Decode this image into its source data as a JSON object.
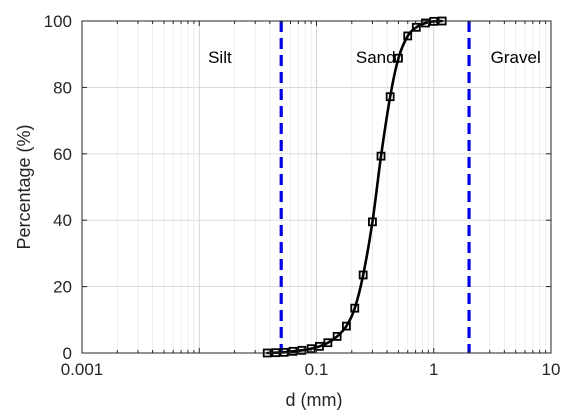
{
  "chart_data": {
    "type": "line",
    "title": "",
    "xlabel": "d (mm)",
    "ylabel": "Percentage (%)",
    "xscale": "log",
    "xlim": [
      0.001,
      10
    ],
    "ylim": [
      0,
      100
    ],
    "grid": true,
    "x_ticks": [
      0.001,
      0.1,
      1,
      10
    ],
    "x_tick_labels": [
      "0.001",
      "0.1",
      "1",
      "10"
    ],
    "y_ticks": [
      0,
      20,
      40,
      60,
      80,
      100
    ],
    "y_tick_labels": [
      "0",
      "20",
      "40",
      "60",
      "80",
      "100"
    ],
    "series": [
      {
        "name": "",
        "color": "#000000",
        "marker": "square",
        "x": [
          0.038,
          0.045,
          0.053,
          0.063,
          0.075,
          0.09,
          0.106,
          0.125,
          0.15,
          0.18,
          0.212,
          0.25,
          0.3,
          0.355,
          0.425,
          0.5,
          0.6,
          0.71,
          0.85,
          1.0,
          1.18
        ],
        "y": [
          0.0,
          0.1,
          0.2,
          0.5,
          0.8,
          1.3,
          2.0,
          3.1,
          5.0,
          8.1,
          13.5,
          23.5,
          39.5,
          59.3,
          77.2,
          88.8,
          95.5,
          98.1,
          99.4,
          99.9,
          100.0
        ]
      }
    ],
    "boundaries": [
      {
        "x": 0.05,
        "color": "#0000e6",
        "style": "dashed"
      },
      {
        "x": 2,
        "color": "#0000e6",
        "style": "dashed"
      }
    ],
    "regions": [
      {
        "label": "Silt",
        "x": 0.015
      },
      {
        "label": "Sand",
        "x": 0.32
      },
      {
        "label": "Gravel",
        "x": 5.0
      }
    ]
  }
}
